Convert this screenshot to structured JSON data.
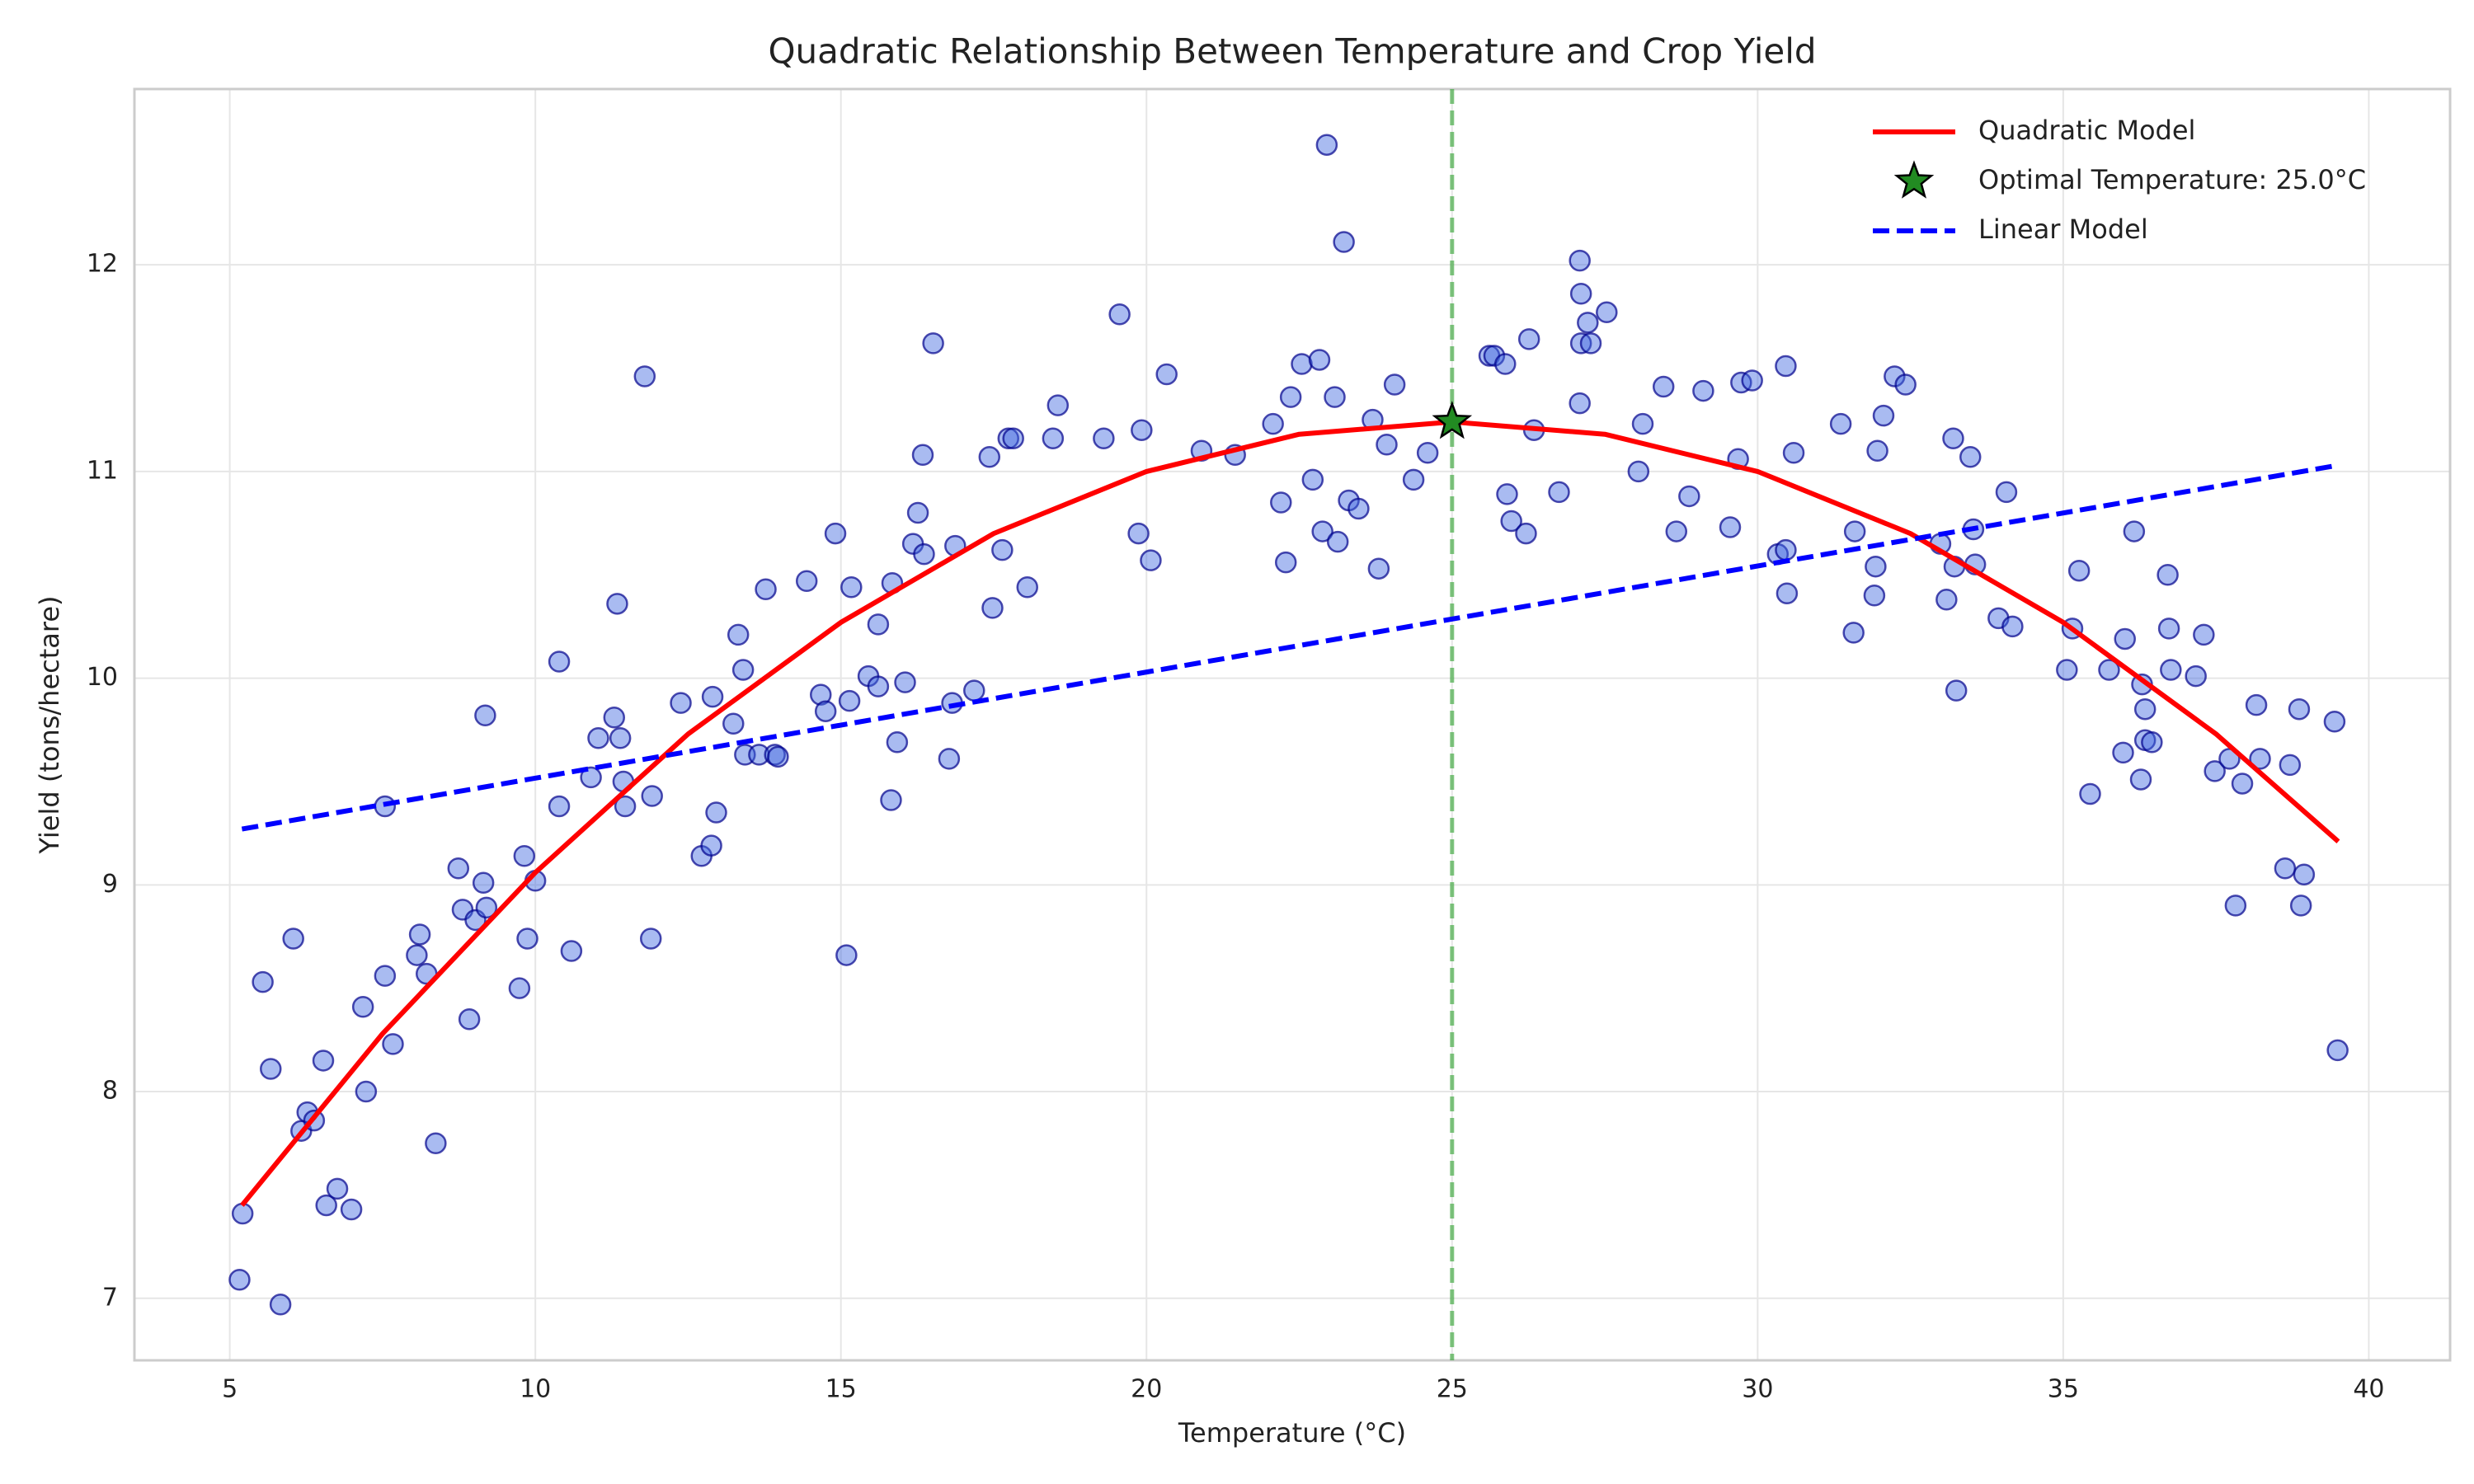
{
  "chart_data": {
    "type": "scatter",
    "title": "Quadratic Relationship Between Temperature and Crop Yield",
    "xlabel": "Temperature (°C)",
    "ylabel": "Yield (tons/hectare)",
    "xlim": [
      3.44,
      41.33
    ],
    "ylim": [
      6.7,
      12.85
    ],
    "xticks": [
      5,
      10,
      15,
      20,
      25,
      30,
      35,
      40
    ],
    "yticks": [
      7,
      8,
      9,
      10,
      11,
      12
    ],
    "grid": true,
    "legend": "upper right",
    "vlines": [
      {
        "x": 25,
        "color": "#2ca02c",
        "linestyle": "dashed"
      }
    ],
    "series": [
      {
        "type": "scatter",
        "color": "#4169e1",
        "x": [
          5.16,
          5.21,
          5.54,
          5.67,
          5.83,
          6.04,
          6.17,
          6.27,
          6.38,
          6.53,
          6.58,
          6.76,
          6.99,
          7.18,
          7.23,
          7.54,
          7.54,
          7.67,
          8.06,
          8.11,
          8.22,
          8.37,
          8.74,
          8.81,
          8.92,
          9.02,
          9.15,
          9.18,
          9.2,
          9.74,
          9.82,
          9.87,
          10.0,
          10.39,
          10.39,
          10.59,
          10.91,
          11.03,
          11.29,
          11.34,
          11.39,
          11.44,
          11.47,
          11.79,
          11.89,
          11.91,
          12.38,
          12.72,
          12.88,
          12.9,
          12.96,
          13.24,
          13.32,
          13.4,
          13.43,
          13.66,
          13.77,
          13.92,
          13.97,
          14.44,
          14.67,
          14.75,
          14.91,
          15.09,
          15.14,
          15.17,
          15.45,
          15.61,
          15.61,
          15.82,
          15.84,
          15.92,
          16.05,
          16.18,
          16.26,
          16.34,
          16.36,
          16.51,
          16.77,
          16.82,
          16.87,
          17.18,
          17.43,
          17.48,
          17.64,
          17.74,
          17.82,
          18.05,
          18.47,
          18.55,
          19.3,
          19.56,
          19.87,
          19.92,
          20.07,
          20.33,
          20.9,
          21.45,
          22.07,
          22.2,
          22.28,
          22.36,
          22.54,
          22.72,
          22.83,
          22.88,
          22.95,
          23.08,
          23.13,
          23.23,
          23.31,
          23.47,
          23.7,
          23.8,
          23.93,
          24.06,
          24.37,
          24.6,
          25.61,
          25.69,
          25.87,
          25.9,
          25.97,
          26.21,
          26.26,
          26.34,
          26.75,
          27.09,
          27.09,
          27.11,
          27.11,
          27.22,
          27.27,
          27.53,
          28.05,
          28.12,
          28.46,
          28.67,
          28.88,
          29.11,
          29.55,
          29.68,
          29.73,
          29.91,
          30.33,
          30.46,
          30.46,
          30.48,
          30.59,
          31.36,
          31.57,
          31.59,
          31.91,
          31.93,
          31.96,
          32.06,
          32.24,
          32.42,
          32.99,
          33.09,
          33.2,
          33.22,
          33.25,
          33.48,
          33.53,
          33.56,
          33.94,
          34.07,
          34.17,
          35.06,
          35.15,
          35.26,
          35.44,
          35.75,
          35.98,
          36.01,
          36.16,
          36.27,
          36.29,
          36.34,
          36.34,
          36.45,
          36.71,
          36.73,
          36.76,
          37.17,
          37.3,
          37.48,
          37.72,
          37.82,
          37.93,
          38.16,
          38.22,
          38.63,
          38.71,
          38.86,
          38.89,
          38.94,
          39.44,
          39.49
        ],
        "values": [
          7.09,
          7.41,
          8.53,
          8.11,
          6.97,
          8.74,
          7.81,
          7.9,
          7.86,
          8.15,
          7.45,
          7.53,
          7.43,
          8.41,
          8.0,
          8.56,
          9.38,
          8.23,
          8.66,
          8.76,
          8.57,
          7.75,
          9.08,
          8.88,
          8.35,
          8.83,
          9.01,
          9.82,
          8.89,
          8.5,
          9.14,
          8.74,
          9.02,
          9.38,
          10.08,
          8.68,
          9.52,
          9.71,
          9.81,
          10.36,
          9.71,
          9.5,
          9.38,
          11.46,
          8.74,
          9.43,
          9.88,
          9.14,
          9.19,
          9.91,
          9.35,
          9.78,
          10.21,
          10.04,
          9.63,
          9.63,
          10.43,
          9.63,
          9.62,
          10.47,
          9.92,
          9.84,
          10.7,
          8.66,
          9.89,
          10.44,
          10.01,
          10.26,
          9.96,
          9.41,
          10.46,
          9.69,
          9.98,
          10.65,
          10.8,
          11.08,
          10.6,
          11.62,
          9.61,
          9.88,
          10.64,
          9.94,
          11.07,
          10.34,
          10.62,
          11.16,
          11.16,
          10.44,
          11.16,
          11.32,
          11.16,
          11.76,
          10.7,
          11.2,
          10.57,
          11.47,
          11.1,
          11.08,
          11.23,
          10.85,
          10.56,
          11.36,
          11.52,
          10.96,
          11.54,
          10.71,
          12.58,
          11.36,
          10.66,
          12.11,
          10.86,
          10.82,
          11.25,
          10.53,
          11.13,
          11.42,
          10.96,
          11.09,
          11.56,
          11.56,
          11.52,
          10.89,
          10.76,
          10.7,
          11.64,
          11.2,
          10.9,
          11.33,
          12.02,
          11.86,
          11.62,
          11.72,
          11.62,
          11.77,
          11.0,
          11.23,
          11.41,
          10.71,
          10.88,
          11.39,
          10.73,
          11.06,
          11.43,
          11.44,
          10.6,
          10.62,
          11.51,
          10.41,
          11.09,
          11.23,
          10.22,
          10.71,
          10.4,
          10.54,
          11.1,
          11.27,
          11.46,
          11.42,
          10.65,
          10.38,
          11.16,
          10.54,
          9.94,
          11.07,
          10.72,
          10.55,
          10.29,
          10.9,
          10.25,
          10.04,
          10.24,
          10.52,
          9.44,
          10.04,
          9.64,
          10.19,
          10.71,
          9.51,
          9.97,
          9.85,
          9.7,
          9.69,
          10.5,
          10.24,
          10.04,
          10.01,
          10.21,
          9.55,
          9.61,
          8.9,
          9.49,
          9.87,
          9.61,
          9.08,
          9.58,
          9.85,
          8.9,
          9.05,
          9.79,
          8.2
        ]
      },
      {
        "type": "line",
        "name": "Quadratic Model",
        "color": "#ff0000",
        "linestyle": "solid",
        "x": [
          5.2,
          7.5,
          10,
          12.5,
          15,
          17.5,
          20,
          22.5,
          25,
          27.5,
          30,
          32.5,
          35,
          37.5,
          39.5
        ],
        "values": [
          7.45,
          8.28,
          9.06,
          9.73,
          10.27,
          10.7,
          11.0,
          11.18,
          11.24,
          11.18,
          11.0,
          10.7,
          10.27,
          9.73,
          9.21
        ]
      },
      {
        "type": "star",
        "name": "Optimal Temperature: 25.0°C",
        "color": "#228b22",
        "x": [
          25
        ],
        "values": [
          11.24
        ]
      },
      {
        "type": "line",
        "name": "Linear Model",
        "color": "#0000ff",
        "linestyle": "dashed",
        "x": [
          5.2,
          39.5
        ],
        "values": [
          9.27,
          11.03
        ]
      }
    ]
  }
}
